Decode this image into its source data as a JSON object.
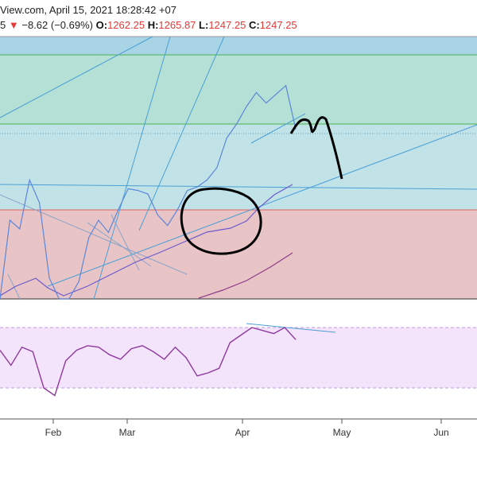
{
  "header": {
    "line1": "View.com, April 15, 2021 18:28:42 +07",
    "change_prefix": "5",
    "down_arrow": "▼",
    "change": "−8.62 (−0.69%)",
    "o_label": "O:",
    "o_value": "1262.25",
    "h_label": "H:",
    "h_value": "1265.87",
    "l_label": "L:",
    "l_value": "1247.25",
    "c_label": "C:",
    "c_value": "1247.25"
  },
  "colors": {
    "price_line": "#5b86d9",
    "ma_line": "#6a5acd",
    "ma_line_lower": "#8b3a8b",
    "oscillator_line": "#8e3a9e",
    "zone_top": "#a9d4e6",
    "zone_green": "#b4e0d6",
    "zone_cyan": "#c1e3e8",
    "zone_red": "#e9c4c6",
    "osc_band": "#f3e3fb",
    "trendline": "#4a9fd6",
    "down_marker": "#e53935"
  },
  "chart_data": [
    {
      "type": "line",
      "panel": "price",
      "x_ticks": [
        "Feb",
        "Mar",
        "Apr",
        "May",
        "Jun"
      ],
      "series": [
        {
          "values": [
            1150,
            1195,
            1190,
            1218,
            1205,
            1162,
            1150,
            1150,
            1160,
            1185,
            1195,
            1188,
            1201,
            1213,
            1212,
            1210,
            1198,
            1192,
            1201,
            1212,
            1214,
            1218,
            1225,
            1242,
            1250,
            1260,
            1268,
            1262,
            1267,
            1272,
            1247
          ]
        }
      ]
    },
    {
      "type": "line",
      "panel": "oscillator",
      "series": [
        {
          "values": [
            55,
            45,
            57,
            54,
            30,
            25,
            48,
            55,
            58,
            57,
            52,
            49,
            56,
            58,
            54,
            49,
            57,
            50,
            38,
            40,
            43,
            60,
            65,
            70,
            68,
            66,
            70,
            62
          ]
        }
      ]
    }
  ]
}
